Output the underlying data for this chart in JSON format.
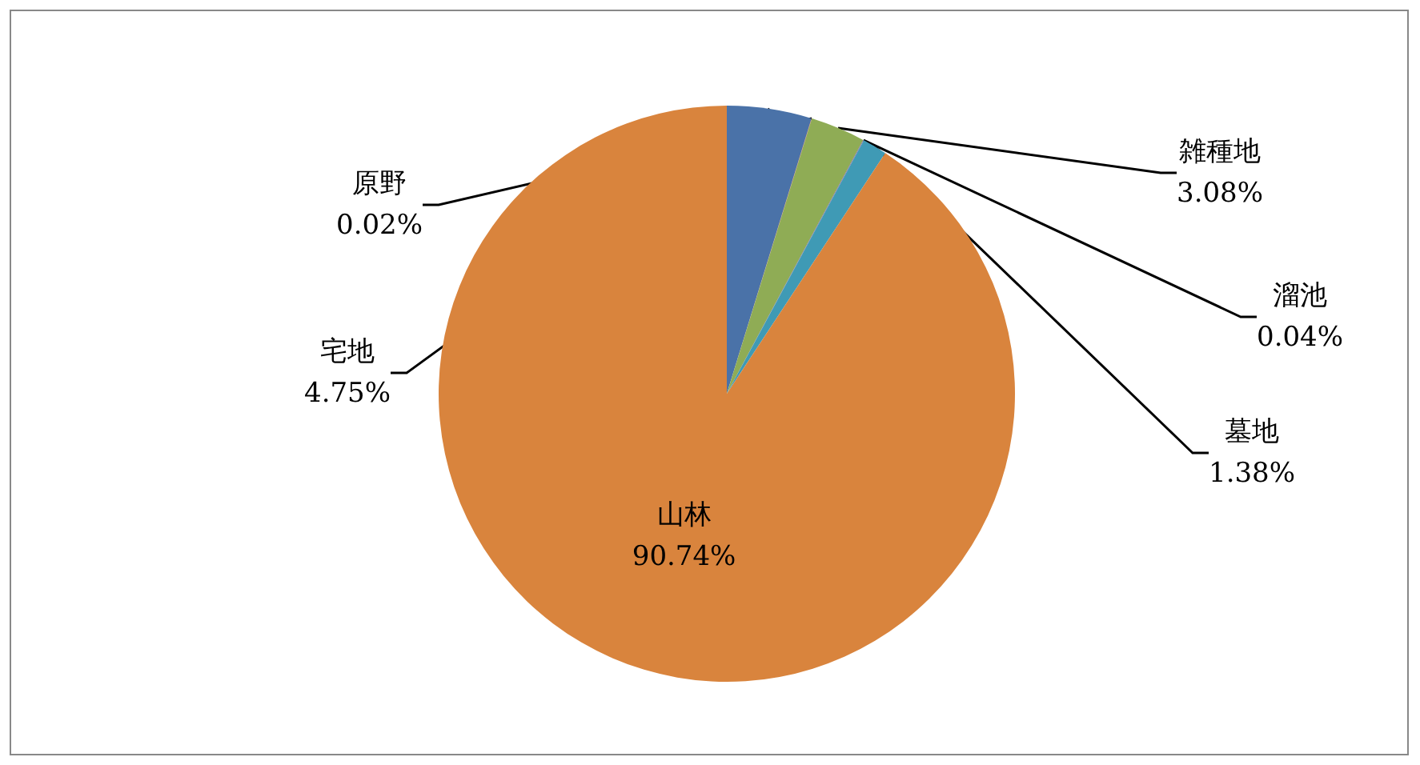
{
  "chart_data": {
    "type": "pie",
    "categories": [
      "宅地",
      "原野",
      "雑種地",
      "溜池",
      "墓地",
      "山林"
    ],
    "values": [
      4.75,
      0.02,
      3.08,
      0.04,
      1.38,
      90.74
    ],
    "value_labels": [
      "4.75%",
      "0.02%",
      "3.08%",
      "0.04%",
      "1.38%",
      "90.74%"
    ],
    "colors": [
      "#4a72a8",
      "#c0504d",
      "#8fac55",
      "#8064a2",
      "#3f9ab5",
      "#d9843d"
    ]
  }
}
